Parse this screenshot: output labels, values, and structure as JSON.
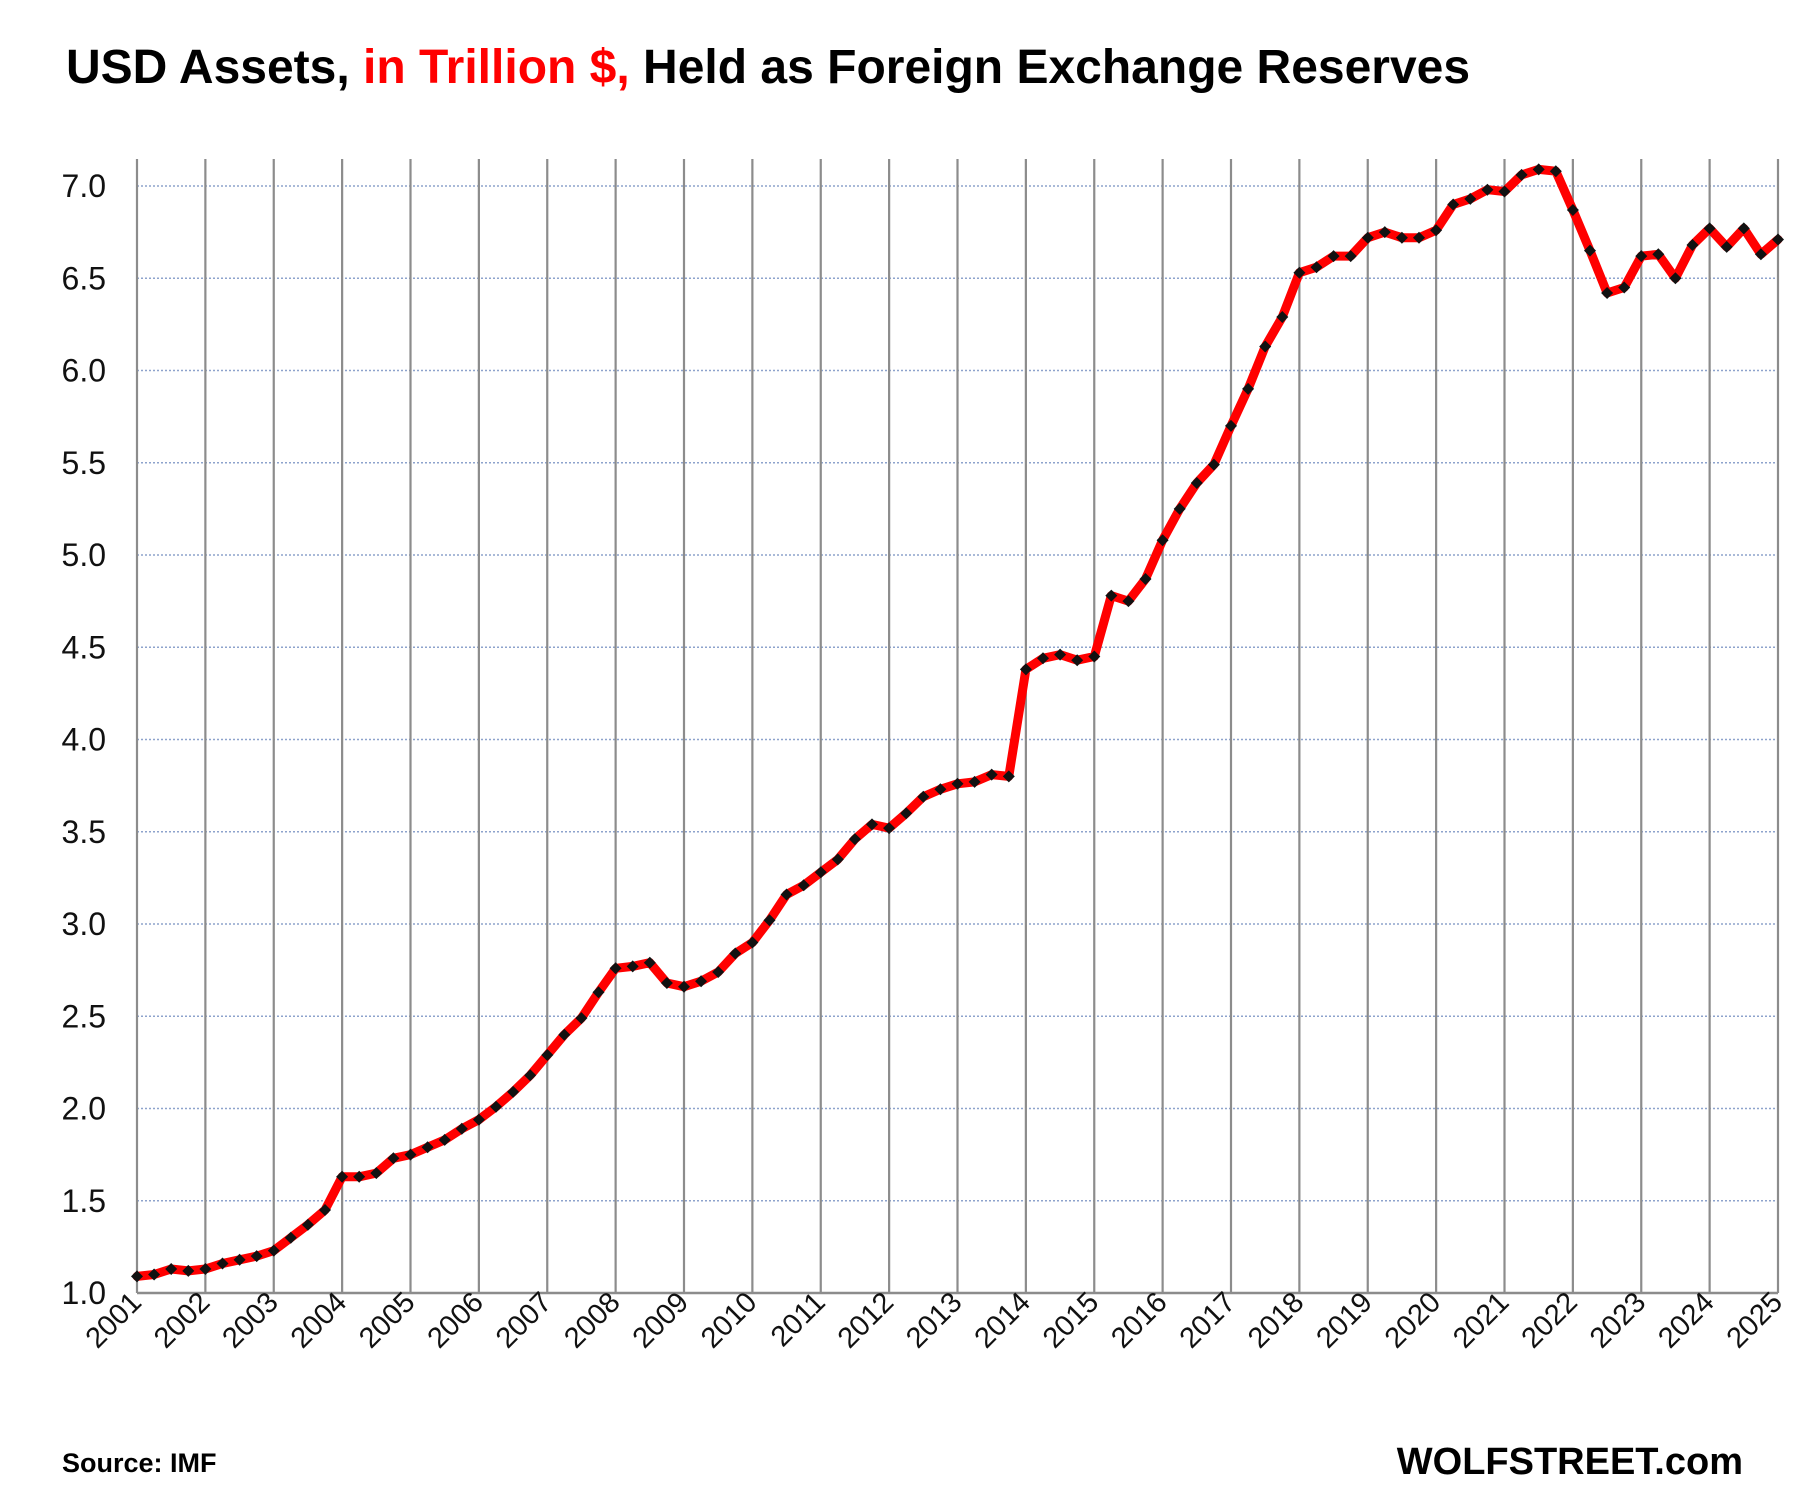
{
  "colors": {
    "line": "#ff0000",
    "marker": "#111111",
    "vgrid": "#8c8c8c",
    "hgrid": "#8ea3cc",
    "title_highlight": "#ff0000"
  },
  "title": {
    "part1": "USD Assets, ",
    "part2": "in Trillion $,",
    "part3": " Held as Foreign Exchange Reserves"
  },
  "footer": {
    "source": "Source: IMF",
    "brand": "WOLFSTREET.com"
  },
  "chart_data": {
    "type": "line",
    "title": "USD Assets, in Trillion $, Held as Foreign Exchange Reserves",
    "xlabel": "",
    "ylabel": "",
    "ylim": [
      1.0,
      7.0
    ],
    "yticks": [
      "1.0",
      "1.5",
      "2.0",
      "2.5",
      "3.0",
      "3.5",
      "4.0",
      "4.5",
      "5.0",
      "5.5",
      "6.0",
      "6.5",
      "7.0"
    ],
    "xticks": [
      "2001",
      "2002",
      "2003",
      "2004",
      "2005",
      "2006",
      "2007",
      "2008",
      "2009",
      "2010",
      "2011",
      "2012",
      "2013",
      "2014",
      "2015",
      "2016",
      "2017",
      "2018",
      "2019",
      "2020",
      "2021",
      "2022",
      "2023",
      "2024",
      "2025"
    ],
    "x_start": 2001.0,
    "x_step": 0.25,
    "grid": true,
    "series": [
      {
        "name": "USD Assets (Trillion $)",
        "values": [
          1.09,
          1.1,
          1.13,
          1.12,
          1.13,
          1.16,
          1.18,
          1.2,
          1.23,
          1.3,
          1.37,
          1.45,
          1.63,
          1.63,
          1.65,
          1.73,
          1.75,
          1.79,
          1.83,
          1.89,
          1.94,
          2.01,
          2.09,
          2.18,
          2.29,
          2.4,
          2.49,
          2.63,
          2.76,
          2.77,
          2.79,
          2.68,
          2.66,
          2.69,
          2.74,
          2.84,
          2.9,
          3.02,
          3.16,
          3.21,
          3.28,
          3.35,
          3.46,
          3.54,
          3.52,
          3.6,
          3.69,
          3.73,
          3.76,
          3.77,
          3.81,
          3.8,
          4.38,
          4.44,
          4.46,
          4.43,
          4.45,
          4.78,
          4.75,
          4.87,
          5.08,
          5.25,
          5.39,
          5.49,
          5.7,
          5.9,
          6.13,
          6.29,
          6.53,
          6.56,
          6.62,
          6.62,
          6.72,
          6.75,
          6.72,
          6.72,
          6.76,
          6.9,
          6.93,
          6.98,
          6.97,
          7.06,
          7.09,
          7.08,
          6.87,
          6.65,
          6.42,
          6.45,
          6.62,
          6.63,
          6.5,
          6.68,
          6.77,
          6.67,
          6.77,
          6.63,
          6.71
        ]
      }
    ]
  }
}
